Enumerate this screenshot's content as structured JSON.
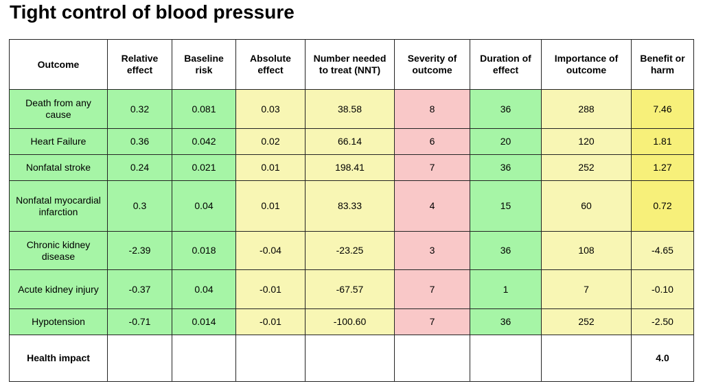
{
  "title": "Tight control of blood pressure",
  "headers": [
    "Outcome",
    "Relative effect",
    "Baseline risk",
    "Absolute effect",
    "Number needed to treat (NNT)",
    "Severity of outcome",
    "Duration of effect",
    "Importance of outcome",
    "Benefit or harm"
  ],
  "rows": [
    {
      "outcome": "Death from any cause",
      "relative": "0.32",
      "baseline": "0.081",
      "absolute": "0.03",
      "nnt": "38.58",
      "severity": "8",
      "duration": "36",
      "importance": "288",
      "benefit": "7.46"
    },
    {
      "outcome": "Heart Failure",
      "relative": "0.36",
      "baseline": "0.042",
      "absolute": "0.02",
      "nnt": "66.14",
      "severity": "6",
      "duration": "20",
      "importance": "120",
      "benefit": "1.81"
    },
    {
      "outcome": "Nonfatal stroke",
      "relative": "0.24",
      "baseline": "0.021",
      "absolute": "0.01",
      "nnt": "198.41",
      "severity": "7",
      "duration": "36",
      "importance": "252",
      "benefit": "1.27"
    },
    {
      "outcome": "Nonfatal myocardial infarction",
      "relative": "0.3",
      "baseline": "0.04",
      "absolute": "0.01",
      "nnt": "83.33",
      "severity": "4",
      "duration": "15",
      "importance": "60",
      "benefit": "0.72"
    },
    {
      "outcome": "Chronic kidney disease",
      "relative": "-2.39",
      "baseline": "0.018",
      "absolute": "-0.04",
      "nnt": "-23.25",
      "severity": "3",
      "duration": "36",
      "importance": "108",
      "benefit": "-4.65"
    },
    {
      "outcome": "Acute kidney injury",
      "relative": "-0.37",
      "baseline": "0.04",
      "absolute": "-0.01",
      "nnt": "-67.57",
      "severity": "7",
      "duration": "1",
      "importance": "7",
      "benefit": "-0.10"
    },
    {
      "outcome": "Hypotension",
      "relative": "-0.71",
      "baseline": "0.014",
      "absolute": "-0.01",
      "nnt": "-100.60",
      "severity": "7",
      "duration": "36",
      "importance": "252",
      "benefit": "-2.50"
    }
  ],
  "footer": {
    "label": "Health impact",
    "value": "4.0"
  },
  "colors": {
    "green": "#a6f5a6",
    "light_yellow": "#f8f6b4",
    "pink": "#f9c8c8",
    "bright_yellow": "#f7f07a"
  }
}
